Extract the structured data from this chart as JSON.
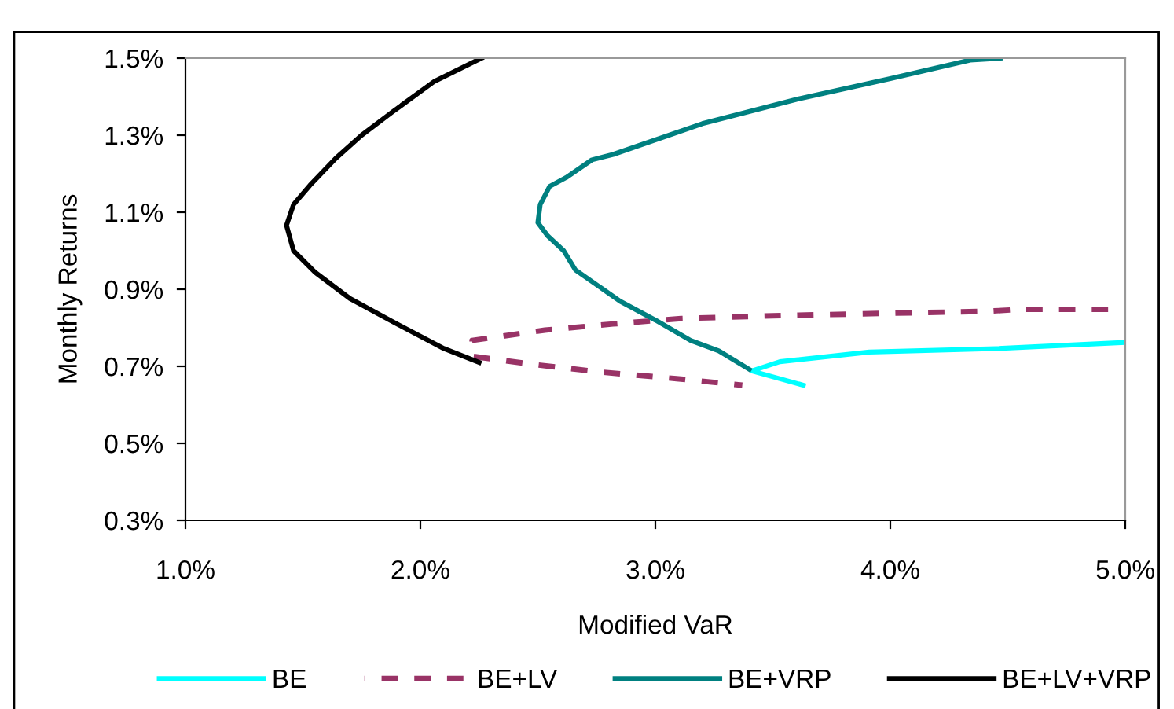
{
  "chart_data": {
    "type": "line",
    "xlabel": "Modified VaR",
    "ylabel": "Monthly Returns",
    "xlim": [
      1.0,
      5.0
    ],
    "ylim": [
      0.3,
      1.5
    ],
    "xticks": [
      {
        "value": 1.0,
        "label": "1.0%"
      },
      {
        "value": 2.0,
        "label": "2.0%"
      },
      {
        "value": 3.0,
        "label": "3.0%"
      },
      {
        "value": 4.0,
        "label": "4.0%"
      },
      {
        "value": 5.0,
        "label": "5.0%"
      }
    ],
    "yticks": [
      {
        "value": 0.3,
        "label": "0.3%"
      },
      {
        "value": 0.5,
        "label": "0.5%"
      },
      {
        "value": 0.7,
        "label": "0.7%"
      },
      {
        "value": 0.9,
        "label": "0.9%"
      },
      {
        "value": 1.1,
        "label": "1.1%"
      },
      {
        "value": 1.3,
        "label": "1.3%"
      },
      {
        "value": 1.5,
        "label": "1.5%"
      }
    ],
    "grid": false,
    "legend": "bottom",
    "marker": "none",
    "series": [
      {
        "name": "BE",
        "color": "#00ffff",
        "line_style": "solid",
        "x": [
          5.0,
          4.45,
          3.91,
          3.53,
          3.41,
          3.63
        ],
        "values": [
          0.762,
          0.746,
          0.737,
          0.712,
          0.688,
          0.651
        ]
      },
      {
        "name": "BE+LV",
        "color": "#993366",
        "line_style": "dashed",
        "x": [
          5.0,
          4.56,
          4.42,
          3.55,
          3.11,
          2.82,
          2.53,
          2.22,
          2.22,
          2.48,
          2.77,
          3.09,
          3.37
        ],
        "values": [
          0.848,
          0.848,
          0.843,
          0.832,
          0.824,
          0.81,
          0.794,
          0.767,
          0.726,
          0.705,
          0.685,
          0.668,
          0.651
        ]
      },
      {
        "name": "BE+VRP",
        "color": "#008080",
        "line_style": "solid",
        "x": [
          4.47,
          4.34,
          4.0,
          3.6,
          3.2,
          2.82,
          2.73,
          2.62,
          2.55,
          2.51,
          2.5,
          2.54,
          2.61,
          2.66,
          2.85,
          3.0,
          3.15,
          3.27,
          3.4
        ],
        "values": [
          1.5,
          1.495,
          1.447,
          1.393,
          1.33,
          1.25,
          1.236,
          1.19,
          1.167,
          1.12,
          1.073,
          1.04,
          1.0,
          0.95,
          0.869,
          0.82,
          0.767,
          0.74,
          0.692
        ]
      },
      {
        "name": "BE+LV+VRP",
        "color": "#000000",
        "line_style": "solid",
        "x": [
          2.26,
          2.06,
          1.88,
          1.75,
          1.64,
          1.53,
          1.46,
          1.43,
          1.46,
          1.55,
          1.7,
          1.9,
          2.1,
          2.25
        ],
        "values": [
          1.5,
          1.44,
          1.36,
          1.3,
          1.24,
          1.17,
          1.12,
          1.066,
          1.0,
          0.945,
          0.876,
          0.81,
          0.746,
          0.71
        ]
      }
    ]
  }
}
